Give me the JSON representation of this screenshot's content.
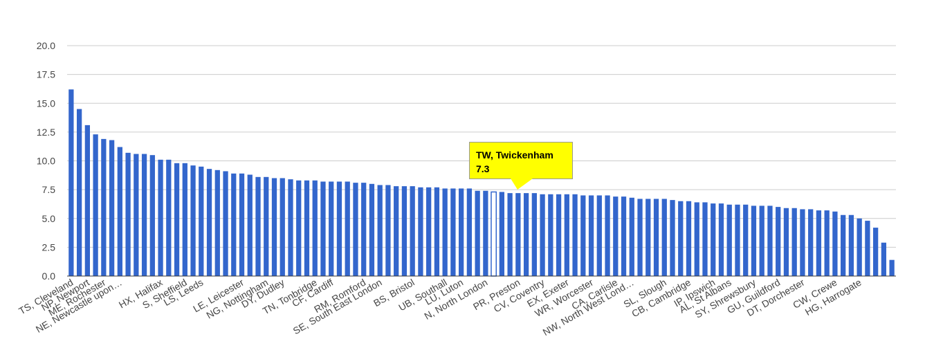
{
  "chart_data": {
    "type": "bar",
    "title": "",
    "xlabel": "",
    "ylabel": "",
    "ylim": [
      0,
      20
    ],
    "yticks": [
      "0.0",
      "2.5",
      "5.0",
      "7.5",
      "10.0",
      "12.5",
      "15.0",
      "17.5",
      "20.0"
    ],
    "grid": true,
    "bar_color": "#3366cc",
    "highlight_index": 52,
    "labeled_categories": [
      {
        "index": 0,
        "label": "TS, Cleveland"
      },
      {
        "index": 2,
        "label": "NP, Newport"
      },
      {
        "index": 4,
        "label": "ME, Rochester"
      },
      {
        "index": 6,
        "label": "NE, Newcastle upon…"
      },
      {
        "index": 11,
        "label": "HX, Halifax"
      },
      {
        "index": 14,
        "label": "S, Sheffield"
      },
      {
        "index": 16,
        "label": "LS, Leeds"
      },
      {
        "index": 21,
        "label": "LE, Leicester"
      },
      {
        "index": 24,
        "label": "NG, Nottingham"
      },
      {
        "index": 26,
        "label": "DY, Dudley"
      },
      {
        "index": 30,
        "label": "TN, Tonbridge"
      },
      {
        "index": 32,
        "label": "CF, Cardiff"
      },
      {
        "index": 36,
        "label": "RM, Romford"
      },
      {
        "index": 38,
        "label": "SE, South East London"
      },
      {
        "index": 42,
        "label": "BS, Bristol"
      },
      {
        "index": 46,
        "label": "UB, Southall"
      },
      {
        "index": 48,
        "label": "LU, Luton"
      },
      {
        "index": 51,
        "label": "N, North London"
      },
      {
        "index": 55,
        "label": "PR, Preston"
      },
      {
        "index": 58,
        "label": "CV, Coventry"
      },
      {
        "index": 61,
        "label": "EX, Exeter"
      },
      {
        "index": 64,
        "label": "WR, Worcester"
      },
      {
        "index": 67,
        "label": "CA, Carlisle"
      },
      {
        "index": 69,
        "label": "NW, North West Lond…"
      },
      {
        "index": 73,
        "label": "SL, Slough"
      },
      {
        "index": 76,
        "label": "CB, Cambridge"
      },
      {
        "index": 79,
        "label": "IP, Ipswich"
      },
      {
        "index": 81,
        "label": "AL, St Albans"
      },
      {
        "index": 84,
        "label": "SY, Shrewsbury"
      },
      {
        "index": 87,
        "label": "GU, Guildford"
      },
      {
        "index": 90,
        "label": "DT, Dorchester"
      },
      {
        "index": 94,
        "label": "CW, Crewe"
      },
      {
        "index": 97,
        "label": "HG, Harrogate"
      }
    ],
    "values": [
      16.2,
      14.5,
      13.1,
      12.3,
      11.9,
      11.8,
      11.2,
      10.7,
      10.6,
      10.6,
      10.5,
      10.1,
      10.1,
      9.8,
      9.8,
      9.6,
      9.5,
      9.3,
      9.2,
      9.1,
      8.9,
      8.9,
      8.8,
      8.6,
      8.6,
      8.5,
      8.5,
      8.4,
      8.3,
      8.3,
      8.3,
      8.2,
      8.2,
      8.2,
      8.2,
      8.1,
      8.1,
      8.0,
      7.9,
      7.9,
      7.8,
      7.8,
      7.8,
      7.7,
      7.7,
      7.7,
      7.6,
      7.6,
      7.6,
      7.6,
      7.4,
      7.4,
      7.3,
      7.3,
      7.2,
      7.2,
      7.2,
      7.2,
      7.1,
      7.1,
      7.1,
      7.1,
      7.1,
      7.0,
      7.0,
      7.0,
      7.0,
      6.9,
      6.9,
      6.8,
      6.7,
      6.7,
      6.7,
      6.7,
      6.6,
      6.5,
      6.5,
      6.4,
      6.4,
      6.3,
      6.3,
      6.2,
      6.2,
      6.2,
      6.1,
      6.1,
      6.1,
      6.0,
      5.9,
      5.9,
      5.8,
      5.8,
      5.7,
      5.7,
      5.6,
      5.3,
      5.3,
      5.0,
      4.8,
      4.2,
      2.9,
      1.4
    ]
  },
  "tooltip": {
    "title": "TW, Twickenham",
    "value": "7.3",
    "background": "#ffff00"
  }
}
